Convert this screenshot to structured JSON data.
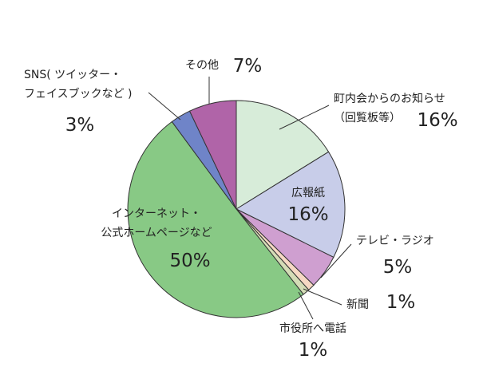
{
  "chart_data": {
    "type": "pie",
    "start_angle_deg": 0,
    "direction": "clockwise",
    "slices": [
      {
        "key": "chonaikai",
        "label_lines": [
          "町内会からのお知らせ",
          "（回覧板等）"
        ],
        "value": 16,
        "value_label": "16%",
        "color": "#d7ecd9"
      },
      {
        "key": "kohoshi",
        "label_lines": [
          "広報紙"
        ],
        "value": 16,
        "value_label": "16%",
        "color": "#c8cde9"
      },
      {
        "key": "tv-radio",
        "label_lines": [
          "テレビ・ラジオ"
        ],
        "value": 5,
        "value_label": "5%",
        "color": "#cf9fd0"
      },
      {
        "key": "shinbun",
        "label_lines": [
          "新聞"
        ],
        "value": 1,
        "value_label": "1%",
        "color": "#f6d8c3"
      },
      {
        "key": "shiyakusho",
        "label_lines": [
          "市役所へ電話"
        ],
        "value": 1,
        "value_label": "1%",
        "color": "#d4dcb6"
      },
      {
        "key": "internet",
        "label_lines": [
          "インターネット・",
          "公式ホームページなど"
        ],
        "value": 50,
        "value_label": "50%",
        "color": "#88c985"
      },
      {
        "key": "sns",
        "label_lines": [
          "SNS( ツイッター・",
          "フェイスブックなど )"
        ],
        "value": 3,
        "value_label": "3%",
        "color": "#6f84c8"
      },
      {
        "key": "sonota",
        "label_lines": [
          "その他"
        ],
        "value": 7,
        "value_label": "7%",
        "color": "#b064a8"
      }
    ]
  }
}
